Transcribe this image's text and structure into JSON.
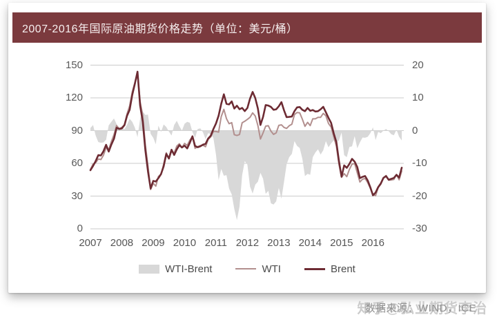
{
  "header": {
    "title": "2007-2016年国际原油期货价格走势（单位：美元/桶）",
    "bg_color": "#7b3a3e",
    "text_color": "#f6efef"
  },
  "chart_data": {
    "type": "line",
    "title": "2007-2016年国际原油期货价格走势",
    "unit": "美元/桶",
    "x_start_year": 2007,
    "x_interval": "monthly",
    "x_tick_labels": [
      "2007",
      "2008",
      "2009",
      "2010",
      "2011",
      "2012",
      "2013",
      "2014",
      "2015",
      "2016"
    ],
    "left_axis": {
      "ticks": [
        0,
        30,
        60,
        90,
        120,
        150
      ],
      "range": [
        0,
        150
      ]
    },
    "right_axis": {
      "ticks": [
        -30,
        -20,
        -10,
        0,
        10,
        20
      ],
      "range": [
        -30,
        20
      ]
    },
    "grid": true,
    "legend_position": "bottom",
    "colors": {
      "area": "#d8d8d8",
      "wti": "#b28f8e",
      "brent": "#6d2b33",
      "gridline": "#cbcbcb"
    },
    "series": [
      {
        "name": "WTI-Brent",
        "type": "area",
        "axis": "right",
        "color": "#d8d8d8",
        "note": "spread computed as WTI minus Brent, plotted against right axis"
      },
      {
        "name": "WTI",
        "type": "line",
        "axis": "left",
        "color": "#b28f8e",
        "values": [
          54.5,
          59.3,
          60.6,
          64.0,
          63.5,
          67.5,
          74.2,
          72.4,
          79.9,
          86.2,
          94.6,
          91.7,
          93.0,
          95.4,
          105.5,
          112.6,
          125.4,
          133.9,
          142.0,
          116.6,
          103.9,
          76.7,
          57.4,
          36.0,
          41.7,
          39.1,
          48.0,
          49.8,
          59.2,
          69.7,
          64.1,
          71.0,
          69.4,
          75.8,
          78.0,
          74.5,
          78.3,
          76.4,
          81.2,
          84.4,
          73.7,
          75.3,
          76.3,
          76.6,
          75.2,
          81.9,
          84.2,
          89.2,
          89.2,
          88.6,
          102.9,
          109.5,
          100.9,
          96.3,
          97.3,
          86.3,
          85.5,
          86.4,
          97.2,
          98.6,
          100.3,
          102.2,
          106.2,
          103.3,
          94.7,
          82.3,
          87.9,
          94.1,
          94.5,
          89.5,
          86.5,
          87.9,
          94.8,
          95.3,
          92.9,
          92.0,
          94.5,
          95.8,
          104.7,
          106.6,
          106.3,
          100.5,
          93.9,
          97.6,
          94.6,
          100.8,
          100.8,
          102.1,
          102.2,
          105.8,
          103.6,
          96.5,
          93.2,
          84.4,
          75.8,
          59.3,
          47.2,
          50.6,
          47.8,
          54.5,
          59.3,
          59.8,
          51.2,
          42.9,
          45.5,
          46.2,
          42.4,
          37.2,
          31.7,
          30.3,
          37.8,
          40.8,
          46.7,
          48.8,
          44.7,
          44.7,
          45.2,
          49.8,
          45.0,
          53.0
        ]
      },
      {
        "name": "Brent",
        "type": "line",
        "axis": "left",
        "color": "#6d2b33",
        "values": [
          53.7,
          57.6,
          62.1,
          67.5,
          67.2,
          71.1,
          77.0,
          70.8,
          77.2,
          82.5,
          92.6,
          91.5,
          92.0,
          95.0,
          103.7,
          109.0,
          122.7,
          133.0,
          144.0,
          113.0,
          98.1,
          71.9,
          52.5,
          37.0,
          43.9,
          43.3,
          46.5,
          50.2,
          57.3,
          68.6,
          64.4,
          72.5,
          67.7,
          72.8,
          76.7,
          74.5,
          76.2,
          73.7,
          78.8,
          84.8,
          75.9,
          74.8,
          75.6,
          77.1,
          77.8,
          82.7,
          85.3,
          91.4,
          96.5,
          103.7,
          114.6,
          123.3,
          114.5,
          114.0,
          116.8,
          110.2,
          112.8,
          109.6,
          110.8,
          107.9,
          110.7,
          119.3,
          125.4,
          119.8,
          110.3,
          95.2,
          102.6,
          113.4,
          112.9,
          111.7,
          109.1,
          109.5,
          112.3,
          116.1,
          108.5,
          102.3,
          102.6,
          102.9,
          107.9,
          111.3,
          111.6,
          109.1,
          107.8,
          110.8,
          108.1,
          108.9,
          107.5,
          107.8,
          109.5,
          111.8,
          106.8,
          101.6,
          97.1,
          87.4,
          79.4,
          62.3,
          47.8,
          58.1,
          55.9,
          59.5,
          64.1,
          61.5,
          56.6,
          46.5,
          47.6,
          48.4,
          44.3,
          38.0,
          30.7,
          33.2,
          38.2,
          41.6,
          46.7,
          48.3,
          44.9,
          45.8,
          46.6,
          49.5,
          46.9,
          56.0
        ]
      }
    ],
    "legend": [
      "WTI-Brent",
      "WTI",
      "Brent"
    ]
  },
  "watermark": {
    "zhihu": "知乎@弘业期货李治",
    "source": "数据来源：WIND，ICE"
  }
}
